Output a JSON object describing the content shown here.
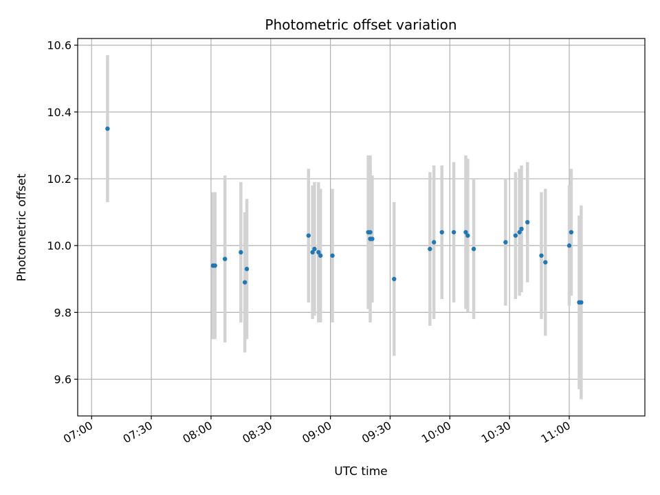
{
  "chart_data": {
    "type": "scatter",
    "title": "Photometric offset variation",
    "xlabel": "UTC time",
    "ylabel": "Photometric offset",
    "xlim": [
      "06:53",
      "11:38"
    ],
    "ylim": [
      9.49,
      10.62
    ],
    "x_ticks": [
      "07:00",
      "07:30",
      "08:00",
      "08:30",
      "09:00",
      "09:30",
      "10:00",
      "10:30",
      "11:00"
    ],
    "y_ticks": [
      "9.6",
      "9.8",
      "10.0",
      "10.2",
      "10.4",
      "10.6"
    ],
    "grid": true,
    "colors": {
      "points": "#1f77b4",
      "error_bars": "#d3d3d3",
      "grid": "#b0b0b0"
    },
    "points": [
      {
        "x": "07:08",
        "y": 10.35,
        "err": 0.22
      },
      {
        "x": "08:01",
        "y": 9.94,
        "err": 0.22
      },
      {
        "x": "08:02",
        "y": 9.94,
        "err": 0.22
      },
      {
        "x": "08:07",
        "y": 9.96,
        "err": 0.25
      },
      {
        "x": "08:15",
        "y": 9.98,
        "err": 0.21
      },
      {
        "x": "08:17",
        "y": 9.89,
        "err": 0.21
      },
      {
        "x": "08:18",
        "y": 9.93,
        "err": 0.21
      },
      {
        "x": "08:49",
        "y": 10.03,
        "err": 0.2
      },
      {
        "x": "08:51",
        "y": 9.98,
        "err": 0.2
      },
      {
        "x": "08:52",
        "y": 9.99,
        "err": 0.2
      },
      {
        "x": "08:54",
        "y": 9.98,
        "err": 0.21
      },
      {
        "x": "08:55",
        "y": 9.97,
        "err": 0.2
      },
      {
        "x": "09:01",
        "y": 9.97,
        "err": 0.2
      },
      {
        "x": "09:19",
        "y": 10.04,
        "err": 0.23
      },
      {
        "x": "09:20",
        "y": 10.02,
        "err": 0.25
      },
      {
        "x": "09:20",
        "y": 10.04,
        "err": 0.2
      },
      {
        "x": "09:21",
        "y": 10.02,
        "err": 0.19
      },
      {
        "x": "09:32",
        "y": 9.9,
        "err": 0.23
      },
      {
        "x": "09:50",
        "y": 9.99,
        "err": 0.23
      },
      {
        "x": "09:52",
        "y": 10.01,
        "err": 0.23
      },
      {
        "x": "09:56",
        "y": 10.04,
        "err": 0.2
      },
      {
        "x": "10:02",
        "y": 10.04,
        "err": 0.21
      },
      {
        "x": "10:08",
        "y": 10.04,
        "err": 0.23
      },
      {
        "x": "10:09",
        "y": 10.03,
        "err": 0.23
      },
      {
        "x": "10:12",
        "y": 9.99,
        "err": 0.21
      },
      {
        "x": "10:28",
        "y": 10.01,
        "err": 0.19
      },
      {
        "x": "10:33",
        "y": 10.03,
        "err": 0.19
      },
      {
        "x": "10:35",
        "y": 10.04,
        "err": 0.19
      },
      {
        "x": "10:36",
        "y": 10.05,
        "err": 0.19
      },
      {
        "x": "10:39",
        "y": 10.07,
        "err": 0.18
      },
      {
        "x": "10:46",
        "y": 9.97,
        "err": 0.19
      },
      {
        "x": "10:48",
        "y": 9.95,
        "err": 0.22
      },
      {
        "x": "11:00",
        "y": 10.0,
        "err": 0.18
      },
      {
        "x": "11:01",
        "y": 10.04,
        "err": 0.19
      },
      {
        "x": "11:05",
        "y": 9.83,
        "err": 0.26
      },
      {
        "x": "11:06",
        "y": 9.83,
        "err": 0.29
      }
    ]
  }
}
